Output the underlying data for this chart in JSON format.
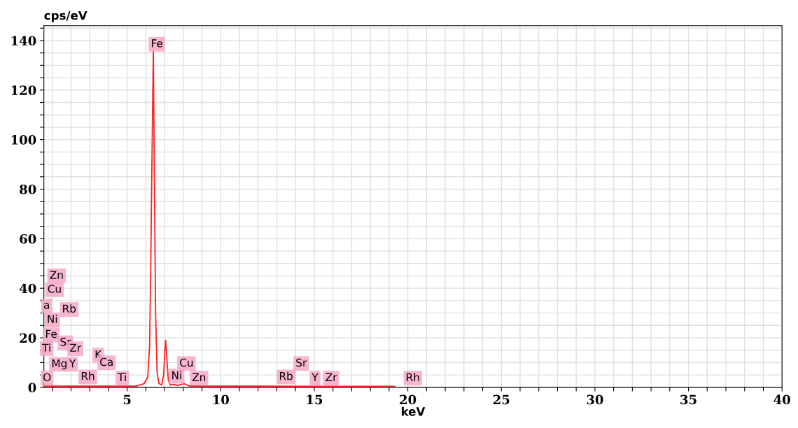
{
  "chart_data": {
    "type": "line",
    "xlabel": "keV",
    "ylabel": "cps/eV",
    "x": [
      0.55,
      5.0,
      5.5,
      5.9,
      6.1,
      6.2,
      6.26,
      6.32,
      6.4,
      6.46,
      6.52,
      6.6,
      6.7,
      6.85,
      6.95,
      7.02,
      7.06,
      7.12,
      7.2,
      7.3,
      7.5,
      7.7,
      8.05,
      8.3,
      9.0,
      12,
      15,
      19.3
    ],
    "series": [
      {
        "color": "#ff2020",
        "values": [
          0.5,
          0.5,
          0.5,
          1.5,
          4,
          17,
          48,
          88,
          136,
          80,
          30,
          6,
          1.5,
          1,
          5,
          15,
          19,
          12,
          3,
          1,
          1.2,
          0.8,
          1.5,
          0.6,
          0.5,
          0.5,
          0.4,
          0.4
        ]
      }
    ],
    "xlim": [
      0.55,
      40
    ],
    "xticks": [
      {
        "value": 1,
        "label": null
      },
      {
        "value": 2,
        "label": null
      },
      {
        "value": 3,
        "label": null
      },
      {
        "value": 4,
        "label": null
      },
      5,
      {
        "value": 6,
        "label": null
      },
      {
        "value": 7,
        "label": null
      },
      {
        "value": 8,
        "label": null
      },
      {
        "value": 9,
        "label": null
      },
      10,
      {
        "value": 11,
        "label": null
      },
      {
        "value": 12,
        "label": null
      },
      {
        "value": 13,
        "label": null
      },
      {
        "value": 14,
        "label": null
      },
      15,
      {
        "value": 16,
        "label": null
      },
      {
        "value": 17,
        "label": null
      },
      {
        "value": 18,
        "label": null
      },
      {
        "value": 19,
        "label": null
      },
      20,
      {
        "value": 21,
        "label": null
      },
      {
        "value": 22,
        "label": null
      },
      {
        "value": 23,
        "label": null
      },
      {
        "value": 24,
        "label": null
      },
      25,
      {
        "value": 26,
        "label": null
      },
      {
        "value": 27,
        "label": null
      },
      {
        "value": 28,
        "label": null
      },
      {
        "value": 29,
        "label": null
      },
      30,
      {
        "value": 31,
        "label": null
      },
      {
        "value": 32,
        "label": null
      },
      {
        "value": 33,
        "label": null
      },
      {
        "value": 34,
        "label": null
      },
      35,
      {
        "value": 36,
        "label": null
      },
      {
        "value": 37,
        "label": null
      },
      {
        "value": 38,
        "label": null
      },
      {
        "value": 39,
        "label": null
      },
      40
    ],
    "ylim": [
      0,
      146
    ],
    "yticks": [
      0,
      {
        "value": 5,
        "label": null
      },
      {
        "value": 10,
        "label": null
      },
      {
        "value": 15,
        "label": null
      },
      20,
      {
        "value": 25,
        "label": null
      },
      {
        "value": 30,
        "label": null
      },
      {
        "value": 35,
        "label": null
      },
      40,
      {
        "value": 45,
        "label": null
      },
      {
        "value": 50,
        "label": null
      },
      {
        "value": 55,
        "label": null
      },
      60,
      {
        "value": 65,
        "label": null
      },
      {
        "value": 70,
        "label": null
      },
      {
        "value": 75,
        "label": null
      },
      80,
      {
        "value": 85,
        "label": null
      },
      {
        "value": 90,
        "label": null
      },
      {
        "value": 95,
        "label": null
      },
      100,
      {
        "value": 105,
        "label": null
      },
      {
        "value": 110,
        "label": null
      },
      {
        "value": 115,
        "label": null
      },
      120,
      {
        "value": 125,
        "label": null
      },
      {
        "value": 130,
        "label": null
      },
      {
        "value": 135,
        "label": null
      },
      140,
      {
        "value": 145,
        "label": null
      }
    ],
    "grid": true,
    "annotations": [
      {
        "text": "Fe",
        "x": 6.59,
        "y": 138.5
      },
      {
        "text": "Zn",
        "x": 1.23,
        "y": 45
      },
      {
        "text": "Cu",
        "x": 1.12,
        "y": 39.4
      },
      {
        "text": "a",
        "x": 0.7,
        "y": 32.9
      },
      {
        "text": "Rb",
        "x": 1.9,
        "y": 31.4
      },
      {
        "text": "Ni",
        "x": 1.0,
        "y": 27.2
      },
      {
        "text": "Fe",
        "x": 0.94,
        "y": 21.2
      },
      {
        "text": "Sr",
        "x": 1.7,
        "y": 18
      },
      {
        "text": "Ti",
        "x": 0.7,
        "y": 15.6
      },
      {
        "text": "Zr",
        "x": 2.23,
        "y": 15.6
      },
      {
        "text": "K",
        "x": 3.45,
        "y": 13
      },
      {
        "text": "Mg",
        "x": 1.38,
        "y": 9.3
      },
      {
        "text": "Y",
        "x": 2.08,
        "y": 9.3
      },
      {
        "text": "Ca",
        "x": 3.9,
        "y": 9.9
      },
      {
        "text": "O",
        "x": 0.72,
        "y": 3.7
      },
      {
        "text": "Rh",
        "x": 2.9,
        "y": 4.2
      },
      {
        "text": "Ti",
        "x": 4.74,
        "y": 3.7
      },
      {
        "text": "Cu",
        "x": 8.17,
        "y": 9.6
      },
      {
        "text": "Ni",
        "x": 7.65,
        "y": 4.5
      },
      {
        "text": "Zn",
        "x": 8.84,
        "y": 3.7
      },
      {
        "text": "Rb",
        "x": 13.49,
        "y": 4.2
      },
      {
        "text": "Sr",
        "x": 14.3,
        "y": 9.6
      },
      {
        "text": "Y",
        "x": 15.04,
        "y": 3.7
      },
      {
        "text": "Zr",
        "x": 15.9,
        "y": 3.7
      },
      {
        "text": "Rh",
        "x": 20.27,
        "y": 3.7
      }
    ]
  }
}
